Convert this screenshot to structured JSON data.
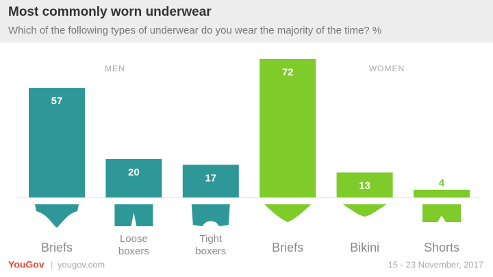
{
  "chart_data": {
    "type": "bar",
    "title": "Most commonly worn underwear",
    "subtitle": "Which of the following types of underwear do you wear the majority of the time?  %",
    "categories": [
      "Briefs",
      "Loose boxers",
      "Tight boxers",
      "Briefs",
      "Bikini",
      "Shorts"
    ],
    "series": [
      {
        "name": "MEN",
        "color": "#2e9797",
        "values": [
          57,
          20,
          17,
          null,
          null,
          null
        ]
      },
      {
        "name": "WOMEN",
        "color": "#7ecb29",
        "values": [
          null,
          null,
          null,
          72,
          13,
          4
        ]
      }
    ],
    "source": "yougov.com",
    "brand": "YouGov",
    "date": "15 - 23 November, 2017"
  }
}
